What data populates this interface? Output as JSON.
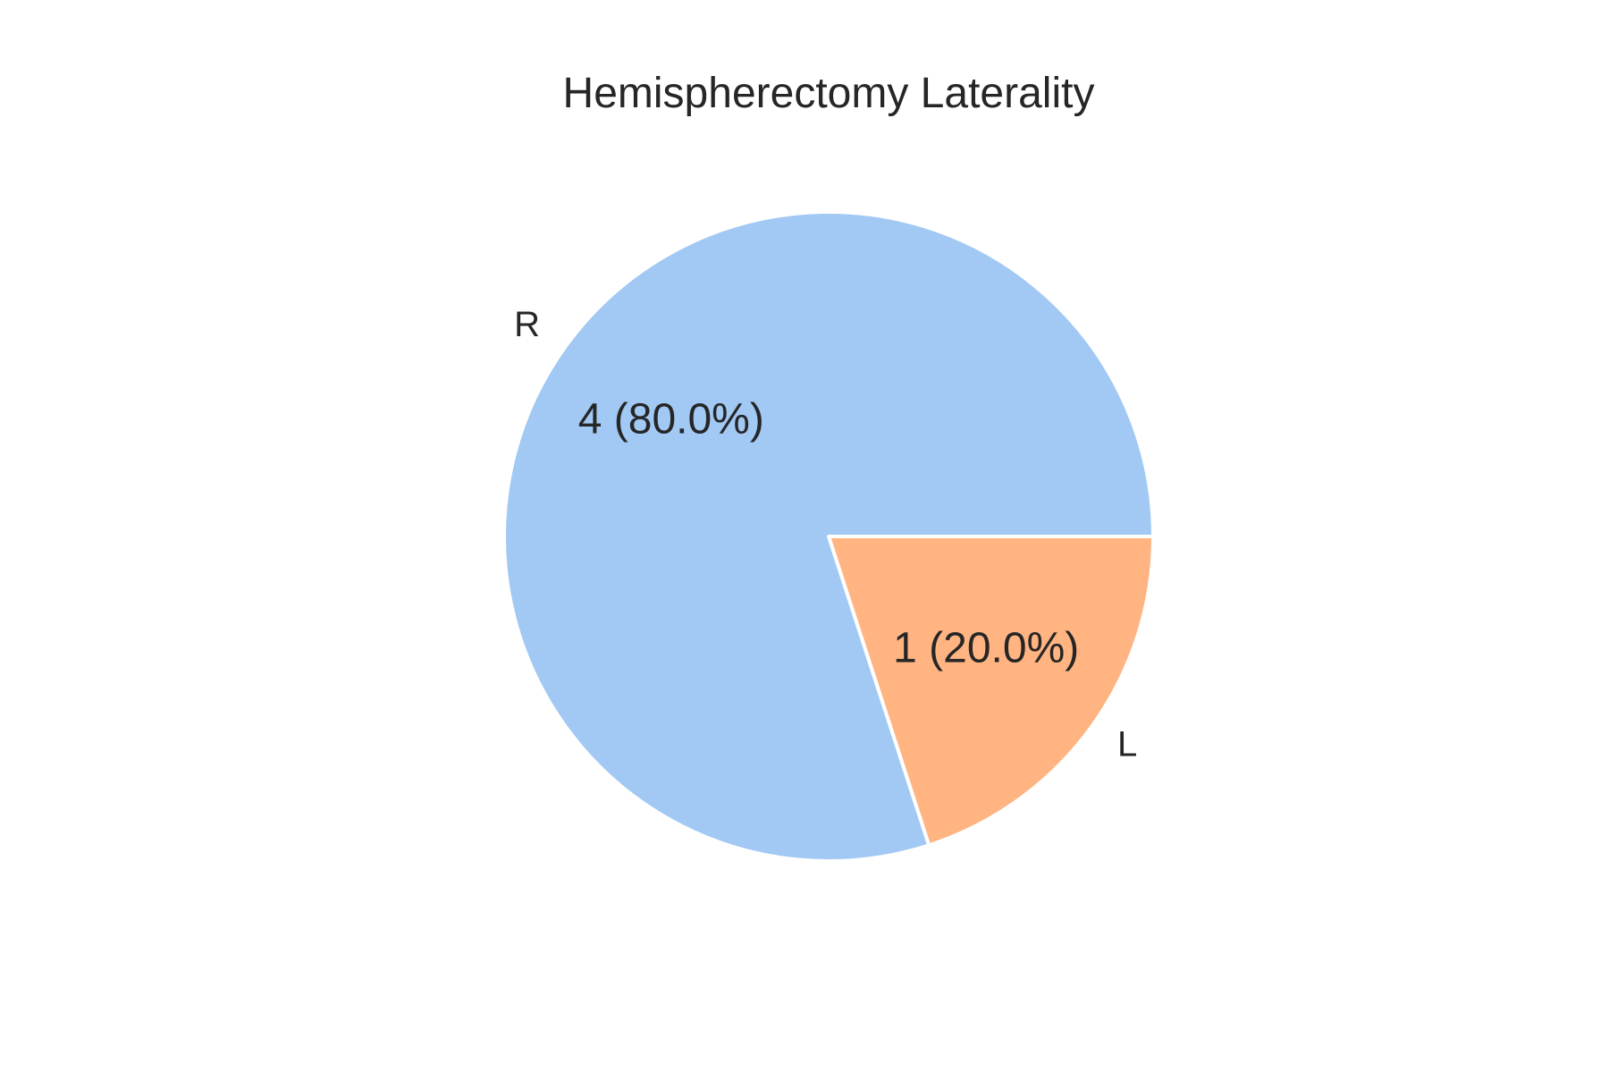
{
  "chart_data": {
    "type": "pie",
    "title": "Hemispherectomy Laterality",
    "slices": [
      {
        "label": "L",
        "value": 1,
        "percent": 20.0,
        "data_label": "1 (20.0%)",
        "color": "#ffb482"
      },
      {
        "label": "R",
        "value": 4,
        "percent": 80.0,
        "data_label": "4 (80.0%)",
        "color": "#a1c9f4"
      }
    ],
    "start_angle_deg": 0,
    "direction": "clockwise",
    "legend": "none"
  }
}
